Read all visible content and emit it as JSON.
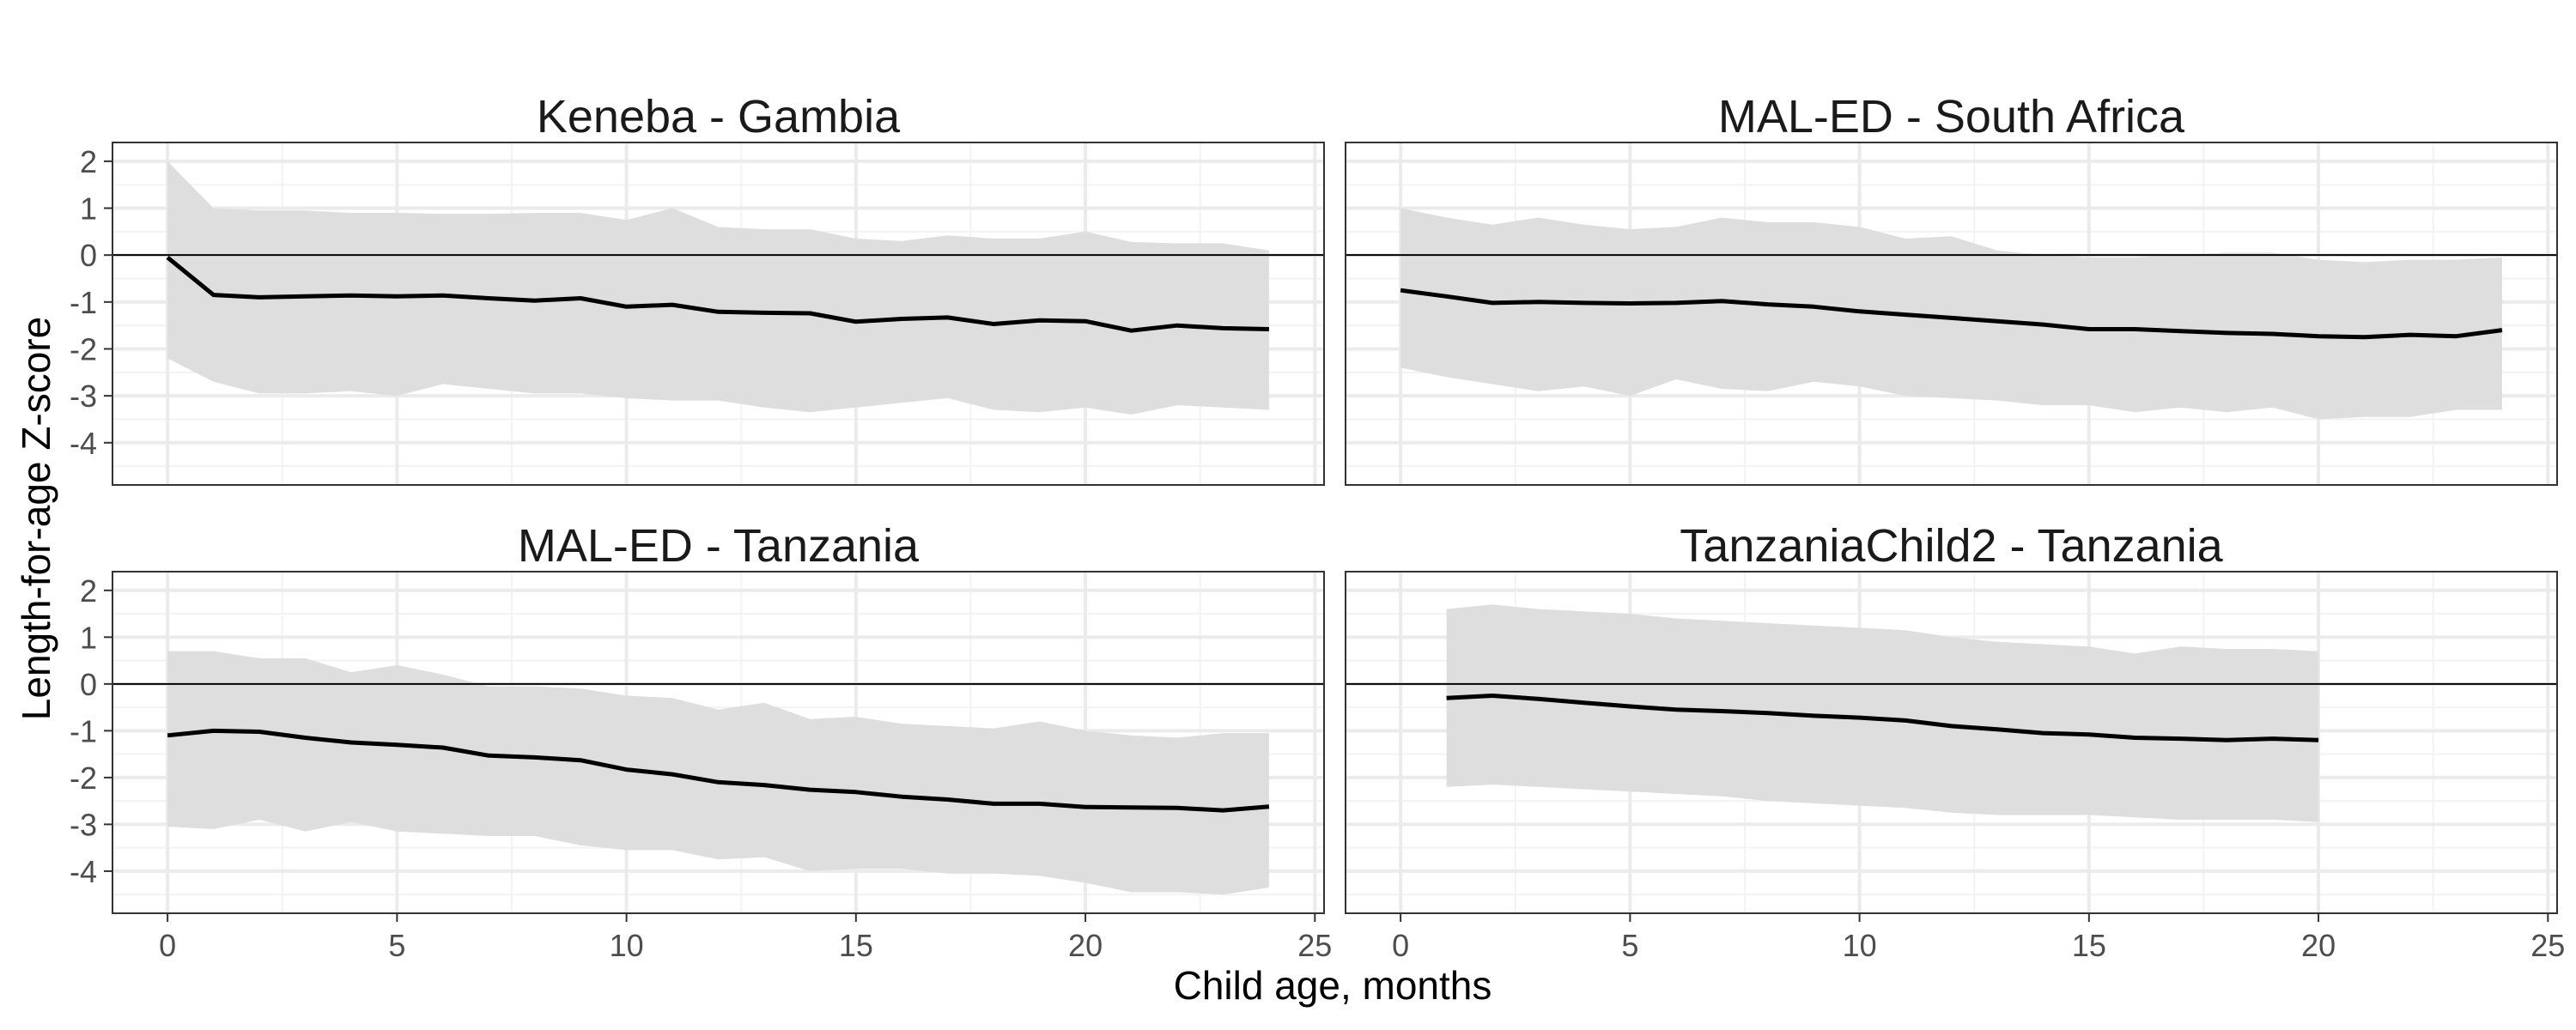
{
  "chart_data": {
    "type": "line",
    "xlabel": "Child age, months",
    "ylabel": "Length-for-age Z-score",
    "xlim": [
      -1.2,
      25.2
    ],
    "ylim": [
      -4.9,
      2.4
    ],
    "x_ticks": [
      0,
      5,
      10,
      15,
      20,
      25
    ],
    "y_ticks": [
      2,
      1,
      0,
      -1,
      -2,
      -3,
      -4
    ],
    "y_tick_labels": [
      "2",
      "1",
      "0",
      "-1",
      "-2",
      "-3",
      "-4"
    ],
    "reference_line_y": 0,
    "grid": true,
    "colors": {
      "line": "#000000",
      "band": "#dedede",
      "grid": "#ebebeb"
    },
    "panels": [
      {
        "title": "Keneba - Gambia",
        "x": [
          0,
          1,
          2,
          3,
          4,
          5,
          6,
          7,
          8,
          9,
          10,
          11,
          12,
          13,
          14,
          15,
          16,
          17,
          18,
          19,
          20,
          21,
          22,
          23,
          24
        ],
        "mean": [
          -0.05,
          -0.85,
          -0.9,
          -0.88,
          -0.86,
          -0.88,
          -0.86,
          -0.92,
          -0.97,
          -0.92,
          -1.1,
          -1.06,
          -1.21,
          -1.23,
          -1.24,
          -1.42,
          -1.36,
          -1.33,
          -1.47,
          -1.39,
          -1.41,
          -1.61,
          -1.5,
          -1.56,
          -1.58
        ],
        "upper": [
          2.0,
          1.0,
          0.95,
          0.95,
          0.9,
          0.9,
          0.88,
          0.88,
          0.9,
          0.9,
          0.75,
          1.0,
          0.6,
          0.55,
          0.55,
          0.35,
          0.3,
          0.42,
          0.35,
          0.35,
          0.5,
          0.28,
          0.25,
          0.25,
          0.1
        ],
        "lower": [
          -2.2,
          -2.7,
          -2.95,
          -2.95,
          -2.9,
          -3.0,
          -2.75,
          -2.85,
          -2.95,
          -2.95,
          -3.05,
          -3.1,
          -3.1,
          -3.25,
          -3.35,
          -3.25,
          -3.15,
          -3.05,
          -3.3,
          -3.35,
          -3.25,
          -3.4,
          -3.2,
          -3.25,
          -3.3
        ]
      },
      {
        "title": "MAL-ED - South Africa",
        "x": [
          0,
          1,
          2,
          3,
          4,
          5,
          6,
          7,
          8,
          9,
          10,
          11,
          12,
          13,
          14,
          15,
          16,
          17,
          18,
          19,
          20,
          21,
          22,
          23,
          24
        ],
        "mean": [
          -0.75,
          -0.88,
          -1.02,
          -1.0,
          -1.02,
          -1.03,
          -1.02,
          -0.98,
          -1.05,
          -1.1,
          -1.2,
          -1.27,
          -1.34,
          -1.41,
          -1.48,
          -1.58,
          -1.58,
          -1.62,
          -1.66,
          -1.68,
          -1.73,
          -1.75,
          -1.7,
          -1.73,
          -1.6
        ],
        "upper": [
          1.0,
          0.8,
          0.65,
          0.8,
          0.65,
          0.55,
          0.6,
          0.8,
          0.7,
          0.7,
          0.6,
          0.35,
          0.4,
          0.1,
          0.0,
          -0.05,
          -0.05,
          0.0,
          0.05,
          0.05,
          -0.1,
          -0.15,
          -0.1,
          -0.1,
          -0.05
        ],
        "lower": [
          -2.4,
          -2.6,
          -2.75,
          -2.9,
          -2.8,
          -3.0,
          -2.65,
          -2.85,
          -2.9,
          -2.7,
          -2.8,
          -3.0,
          -3.05,
          -3.1,
          -3.2,
          -3.2,
          -3.35,
          -3.25,
          -3.35,
          -3.25,
          -3.5,
          -3.45,
          -3.45,
          -3.3,
          -3.3
        ]
      },
      {
        "title": "MAL-ED - Tanzania",
        "x": [
          0,
          1,
          2,
          3,
          4,
          5,
          6,
          7,
          8,
          9,
          10,
          11,
          12,
          13,
          14,
          15,
          16,
          17,
          18,
          19,
          20,
          21,
          22,
          23,
          24
        ],
        "mean": [
          -1.1,
          -1.0,
          -1.02,
          -1.15,
          -1.25,
          -1.3,
          -1.36,
          -1.53,
          -1.57,
          -1.63,
          -1.83,
          -1.93,
          -2.1,
          -2.16,
          -2.26,
          -2.31,
          -2.41,
          -2.47,
          -2.56,
          -2.56,
          -2.63,
          -2.64,
          -2.65,
          -2.7,
          -2.62
        ],
        "upper": [
          0.7,
          0.7,
          0.55,
          0.55,
          0.25,
          0.4,
          0.2,
          -0.05,
          -0.05,
          -0.1,
          -0.25,
          -0.3,
          -0.55,
          -0.4,
          -0.75,
          -0.7,
          -0.85,
          -0.9,
          -0.95,
          -0.8,
          -1.0,
          -1.1,
          -1.15,
          -1.05,
          -1.05
        ],
        "lower": [
          -3.05,
          -3.1,
          -2.9,
          -3.15,
          -2.95,
          -3.15,
          -3.2,
          -3.25,
          -3.25,
          -3.45,
          -3.55,
          -3.55,
          -3.75,
          -3.7,
          -4.0,
          -3.95,
          -3.95,
          -4.05,
          -4.05,
          -4.1,
          -4.25,
          -4.45,
          -4.45,
          -4.5,
          -4.35
        ]
      },
      {
        "title": "TanzaniaChild2 - Tanzania",
        "x": [
          1,
          2,
          3,
          4,
          5,
          6,
          7,
          8,
          9,
          10,
          11,
          12,
          13,
          14,
          15,
          16,
          17,
          18,
          19,
          20
        ],
        "mean": [
          -0.3,
          -0.25,
          -0.32,
          -0.4,
          -0.48,
          -0.55,
          -0.58,
          -0.62,
          -0.68,
          -0.72,
          -0.78,
          -0.9,
          -0.97,
          -1.05,
          -1.08,
          -1.15,
          -1.17,
          -1.2,
          -1.17,
          -1.2
        ],
        "upper": [
          1.6,
          1.7,
          1.6,
          1.55,
          1.5,
          1.4,
          1.35,
          1.3,
          1.25,
          1.2,
          1.15,
          1.0,
          0.9,
          0.85,
          0.8,
          0.65,
          0.8,
          0.75,
          0.75,
          0.7
        ],
        "lower": [
          -2.2,
          -2.15,
          -2.2,
          -2.25,
          -2.3,
          -2.35,
          -2.4,
          -2.5,
          -2.55,
          -2.6,
          -2.65,
          -2.75,
          -2.8,
          -2.8,
          -2.8,
          -2.85,
          -2.9,
          -2.9,
          -2.9,
          -2.95
        ]
      }
    ]
  }
}
